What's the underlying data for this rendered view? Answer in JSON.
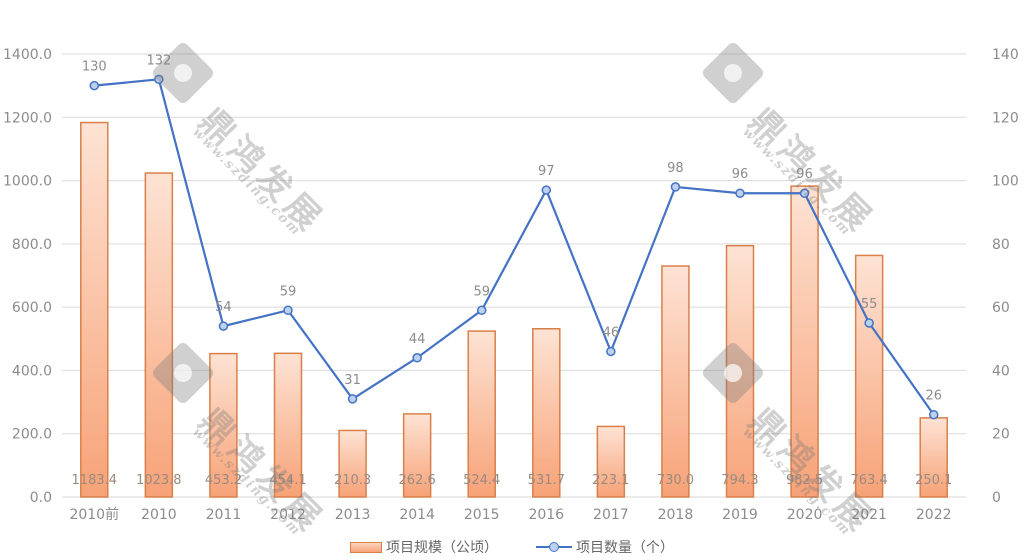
{
  "chart_data": {
    "type": "bar+line",
    "title": "",
    "categories": [
      "2010前",
      "2010",
      "2011",
      "2012",
      "2013",
      "2014",
      "2015",
      "2016",
      "2017",
      "2018",
      "2019",
      "2020",
      "2021",
      "2022"
    ],
    "series": [
      {
        "name": "项目规模（公顷）",
        "type": "bar",
        "axis": "left",
        "values": [
          1183.4,
          1023.8,
          453.2,
          454.1,
          210.3,
          262.6,
          524.4,
          531.7,
          223.1,
          730.0,
          794.3,
          982.5,
          763.4,
          250.1
        ],
        "labels": [
          "1183.4",
          "1023.8",
          "453.2",
          "454.1",
          "210.3",
          "262.6",
          "524.4",
          "531.7",
          "223.1",
          "730.0",
          "794.3",
          "982.5",
          "763.4",
          "250.1"
        ]
      },
      {
        "name": "项目数量（个）",
        "type": "line",
        "axis": "right",
        "values": [
          130,
          132,
          54,
          59,
          31,
          44,
          59,
          97,
          46,
          98,
          96,
          96,
          55,
          26
        ],
        "labels": [
          "130",
          "132",
          "54",
          "59",
          "31",
          "44",
          "59",
          "97",
          "46",
          "98",
          "96",
          "96",
          "55",
          "26"
        ]
      }
    ],
    "y_left": {
      "min": 0,
      "max": 1400,
      "ticks": [
        "0.0",
        "200.0",
        "400.0",
        "600.0",
        "800.0",
        "1000.0",
        "1200.0",
        "1400.0"
      ]
    },
    "y_right": {
      "min": 0,
      "max": 140,
      "ticks": [
        "0",
        "20",
        "40",
        "60",
        "80",
        "100",
        "120",
        "140"
      ]
    },
    "xlabel": "",
    "ylabel": "",
    "grid": true,
    "legend_position": "bottom",
    "colors": {
      "bar_top": "#fde0cf",
      "bar_bottom": "#f7a277",
      "bar_border": "#d9804a",
      "line": "#4472c4",
      "marker_fill": "#bdd0ee",
      "grid": "#d9d9d9"
    }
  },
  "legend": {
    "bar_label": "项目规模（公顷）",
    "line_label": "项目数量（个）"
  },
  "watermark": {
    "brand": "鼎鸿发展",
    "url": "www.szding.com"
  }
}
